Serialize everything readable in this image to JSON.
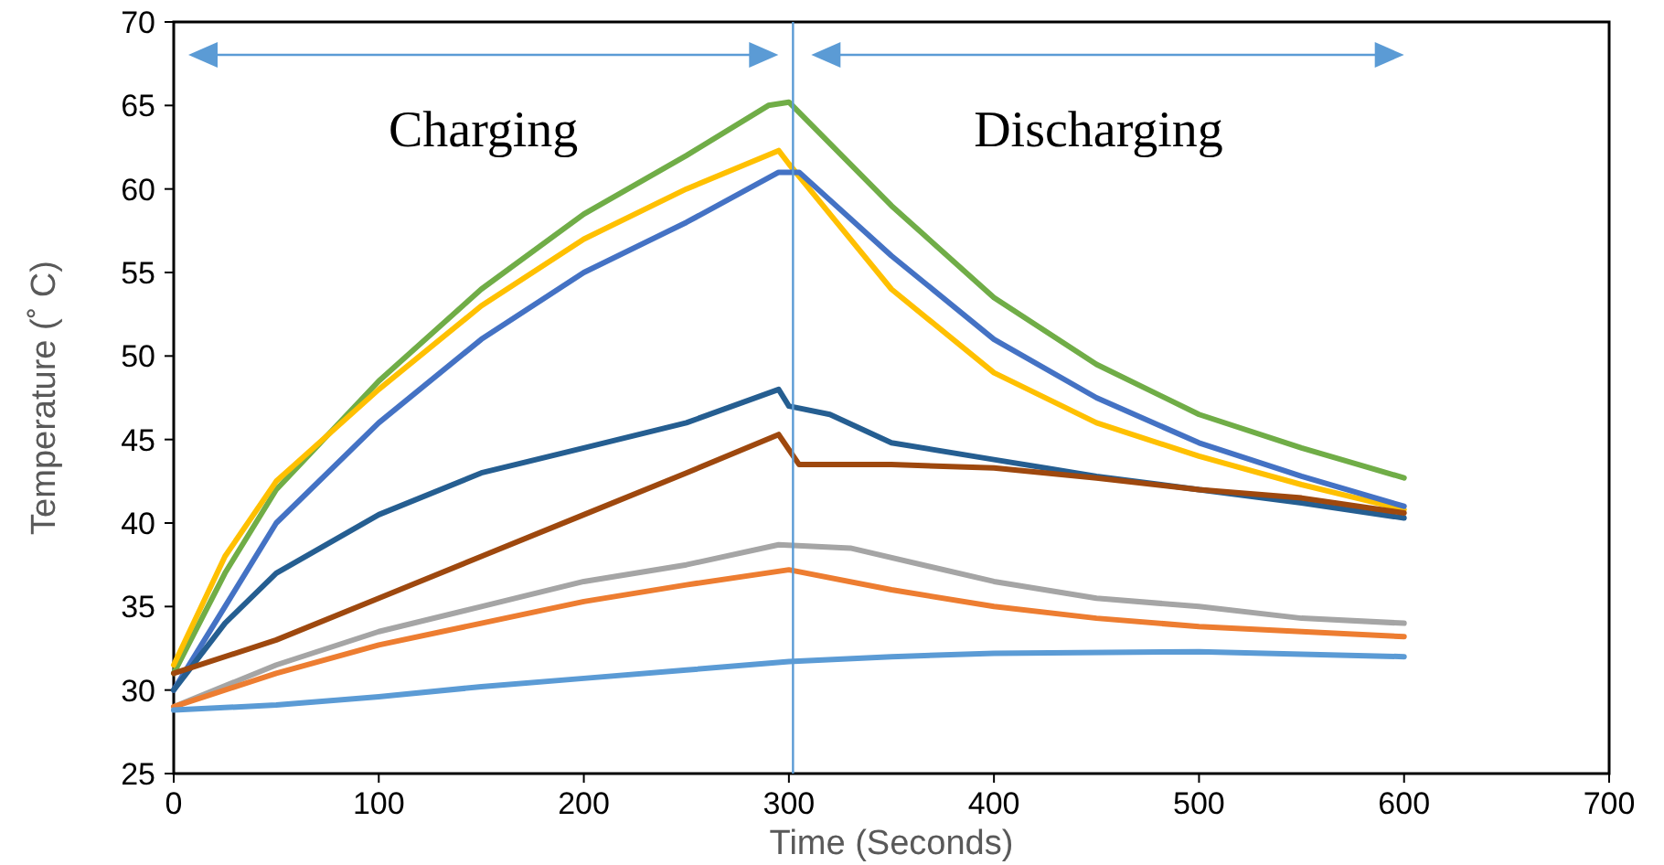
{
  "chart_data": {
    "type": "line",
    "xlabel": "Time (Seconds)",
    "ylabel": "Temperature (˚ C)",
    "xlim": [
      0,
      700
    ],
    "ylim": [
      25,
      70
    ],
    "xticks": [
      0,
      100,
      200,
      300,
      400,
      500,
      600,
      700
    ],
    "yticks": [
      25,
      30,
      35,
      40,
      45,
      50,
      55,
      60,
      65,
      70
    ],
    "grid": false,
    "line_style": "solid",
    "ref_lines": [
      {
        "axis": "x",
        "value": 302,
        "color": "#5b9bd5"
      }
    ],
    "annotations": [
      "Charging",
      "Discharging"
    ],
    "series": [
      {
        "color": "#70ad47",
        "x": [
          0,
          25,
          50,
          100,
          150,
          200,
          250,
          290,
          300,
          350,
          400,
          450,
          500,
          550,
          600
        ],
        "values": [
          31,
          37,
          42,
          48.5,
          54,
          58.5,
          62,
          65,
          65.2,
          59,
          53.5,
          49.5,
          46.5,
          44.5,
          42.7
        ]
      },
      {
        "color": "#ffc000",
        "x": [
          0,
          25,
          50,
          100,
          150,
          200,
          250,
          295,
          300,
          350,
          400,
          450,
          500,
          550,
          600
        ],
        "values": [
          31.5,
          38,
          42.5,
          48,
          53,
          57,
          60,
          62.3,
          61.5,
          54,
          49,
          46,
          44,
          42.3,
          40.8
        ]
      },
      {
        "color": "#4472c4",
        "x": [
          0,
          25,
          50,
          100,
          150,
          200,
          250,
          295,
          305,
          350,
          400,
          450,
          500,
          550,
          600
        ],
        "values": [
          30,
          35,
          40,
          46,
          51,
          55,
          58,
          61,
          61,
          56,
          51,
          47.5,
          44.8,
          42.8,
          41
        ]
      },
      {
        "color": "#255e91",
        "x": [
          0,
          25,
          50,
          100,
          150,
          200,
          250,
          295,
          300,
          320,
          350,
          400,
          450,
          500,
          550,
          600
        ],
        "values": [
          30,
          34,
          37,
          40.5,
          43,
          44.5,
          46,
          48,
          47,
          46.5,
          44.8,
          43.8,
          42.8,
          42,
          41.2,
          40.3
        ]
      },
      {
        "color": "#9e480e",
        "x": [
          0,
          50,
          100,
          150,
          200,
          250,
          295,
          305,
          350,
          400,
          450,
          500,
          550,
          600
        ],
        "values": [
          31,
          33,
          35.5,
          38,
          40.5,
          43,
          45.3,
          43.5,
          43.5,
          43.3,
          42.7,
          42,
          41.5,
          40.6
        ]
      },
      {
        "color": "#a5a5a5",
        "x": [
          0,
          50,
          100,
          150,
          200,
          250,
          295,
          330,
          400,
          450,
          500,
          550,
          600
        ],
        "values": [
          29,
          31.5,
          33.5,
          35,
          36.5,
          37.5,
          38.7,
          38.5,
          36.5,
          35.5,
          35,
          34.3,
          34
        ]
      },
      {
        "color": "#ed7d31",
        "x": [
          0,
          50,
          100,
          150,
          200,
          250,
          300,
          350,
          400,
          450,
          500,
          550,
          600
        ],
        "values": [
          29,
          31,
          32.7,
          34,
          35.3,
          36.3,
          37.2,
          36,
          35,
          34.3,
          33.8,
          33.5,
          33.2
        ]
      },
      {
        "color": "#5b9bd5",
        "x": [
          0,
          50,
          100,
          150,
          200,
          250,
          300,
          350,
          400,
          500,
          600
        ],
        "values": [
          28.8,
          29.1,
          29.6,
          30.2,
          30.7,
          31.2,
          31.7,
          32,
          32.2,
          32.3,
          32
        ]
      }
    ]
  }
}
